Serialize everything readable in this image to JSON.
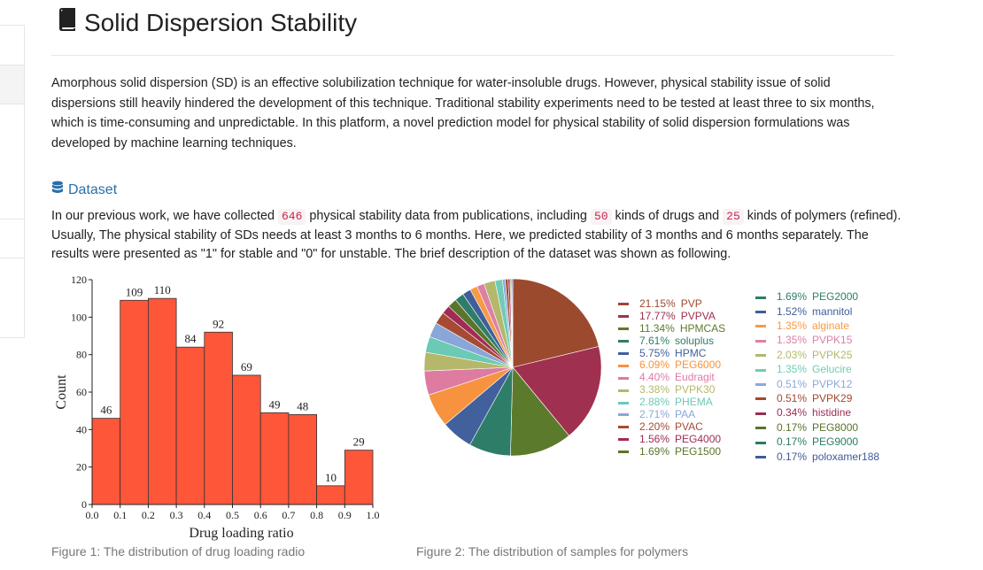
{
  "page": {
    "title": "Solid Dispersion Stability",
    "intro": "Amorphous solid dispersion (SD) is an effective solubilization technique for water-insoluble drugs. However, physical stability issue of solid dispersions still heavily hindered the development of this technique. Traditional stability experiments need to be tested at least three to six months, which is time-consuming and unpredictable. In this platform, a novel prediction model for physical stability of solid dispersion formulations was developed by machine learning techniques."
  },
  "dataset": {
    "heading": "Dataset",
    "text_1": "In our previous work, we have collected",
    "count_records": "646",
    "text_2": "physical stability data from publications, including",
    "count_drugs": "50",
    "text_3": "kinds of drugs and",
    "count_polymers": "25",
    "text_4": "kinds of polymers (refined). Usually, The physical stability of SDs needs at least 3 months to 6 months. Here, we predicted stability of 3 months and 6 months separately. The results were presented as \"1\" for stable and \"0\" for unstable. The brief description of the dataset was shown as following."
  },
  "figures": {
    "caption_1": "Figure 1: The distribution of drug loading radio",
    "caption_2": "Figure 2: The distribution of samples for polymers"
  },
  "icons": {
    "title": "book-icon",
    "dataset": "database-icon"
  },
  "colors": {
    "accent": "#2a6fa8",
    "bar": "#fe5639",
    "badge_text": "#c7254e",
    "badge_bg": "#f9f2f4"
  },
  "chart_data": [
    {
      "type": "bar",
      "xlabel": "Drug loading ratio",
      "ylabel": "Count",
      "bin_edges": [
        0.0,
        0.1,
        0.2,
        0.3,
        0.4,
        0.5,
        0.6,
        0.7,
        0.8,
        0.9,
        1.0
      ],
      "x_tick_labels": [
        "0.0",
        "0.1",
        "0.2",
        "0.3",
        "0.4",
        "0.5",
        "0.6",
        "0.7",
        "0.8",
        "0.9",
        "1.0"
      ],
      "values": [
        46,
        109,
        110,
        84,
        92,
        69,
        49,
        48,
        10,
        29
      ],
      "y_ticks": [
        0,
        20,
        40,
        60,
        80,
        100,
        120
      ],
      "ylim": [
        0,
        120
      ],
      "color": "#fe5639"
    },
    {
      "type": "pie",
      "slices": [
        {
          "label": "PVP",
          "pct": 21.15,
          "pct_text": "21.15%",
          "color": "#9c4a2e"
        },
        {
          "label": "PVPVA",
          "pct": 17.77,
          "pct_text": "17.77%",
          "color": "#a0304f"
        },
        {
          "label": "HPMCAS",
          "pct": 11.34,
          "pct_text": "11.34%",
          "color": "#5c7a2c"
        },
        {
          "label": "soluplus",
          "pct": 7.61,
          "pct_text": "7.61%",
          "color": "#2e7d68"
        },
        {
          "label": "HPMC",
          "pct": 5.75,
          "pct_text": "5.75%",
          "color": "#41609c"
        },
        {
          "label": "PEG6000",
          "pct": 6.09,
          "pct_text": "6.09%",
          "color": "#f7933f"
        },
        {
          "label": "Eudragit",
          "pct": 4.4,
          "pct_text": "4.40%",
          "color": "#de7ba1"
        },
        {
          "label": "PVPK30",
          "pct": 3.38,
          "pct_text": "3.38%",
          "color": "#b5b86a"
        },
        {
          "label": "PHEMA",
          "pct": 2.88,
          "pct_text": "2.88%",
          "color": "#6bc9b4"
        },
        {
          "label": "PAA",
          "pct": 2.71,
          "pct_text": "2.71%",
          "color": "#8aa6d8"
        },
        {
          "label": "PVAC",
          "pct": 2.2,
          "pct_text": "2.20%",
          "color": "#a64a34"
        },
        {
          "label": "PEG4000",
          "pct": 1.56,
          "pct_text": "1.56%",
          "color": "#a02c55"
        },
        {
          "label": "PEG1500",
          "pct": 1.69,
          "pct_text": "1.69%",
          "color": "#5a752b"
        },
        {
          "label": "PEG2000",
          "pct": 1.69,
          "pct_text": "1.69%",
          "color": "#2e7d6a"
        },
        {
          "label": "mannitol",
          "pct": 1.52,
          "pct_text": "1.52%",
          "color": "#3f5e9a"
        },
        {
          "label": "alginate",
          "pct": 1.35,
          "pct_text": "1.35%",
          "color": "#f79a46"
        },
        {
          "label": "PVPK15",
          "pct": 1.35,
          "pct_text": "1.35%",
          "color": "#de7fa6"
        },
        {
          "label": "PVPK25",
          "pct": 2.03,
          "pct_text": "2.03%",
          "color": "#b4b86c"
        },
        {
          "label": "Gelucire",
          "pct": 1.35,
          "pct_text": "1.35%",
          "color": "#6fccb6"
        },
        {
          "label": "PVPK12",
          "pct": 0.51,
          "pct_text": "0.51%",
          "color": "#8ca8da"
        },
        {
          "label": "PVPK29",
          "pct": 0.51,
          "pct_text": "0.51%",
          "color": "#a2492f"
        },
        {
          "label": "histidine",
          "pct": 0.34,
          "pct_text": "0.34%",
          "color": "#9c2d52"
        },
        {
          "label": "PEG8000",
          "pct": 0.17,
          "pct_text": "0.17%",
          "color": "#58732a"
        },
        {
          "label": "PEG9000",
          "pct": 0.17,
          "pct_text": "0.17%",
          "color": "#2c7a66"
        },
        {
          "label": "poloxamer188",
          "pct": 0.17,
          "pct_text": "0.17%",
          "color": "#3e5c98"
        }
      ]
    }
  ]
}
